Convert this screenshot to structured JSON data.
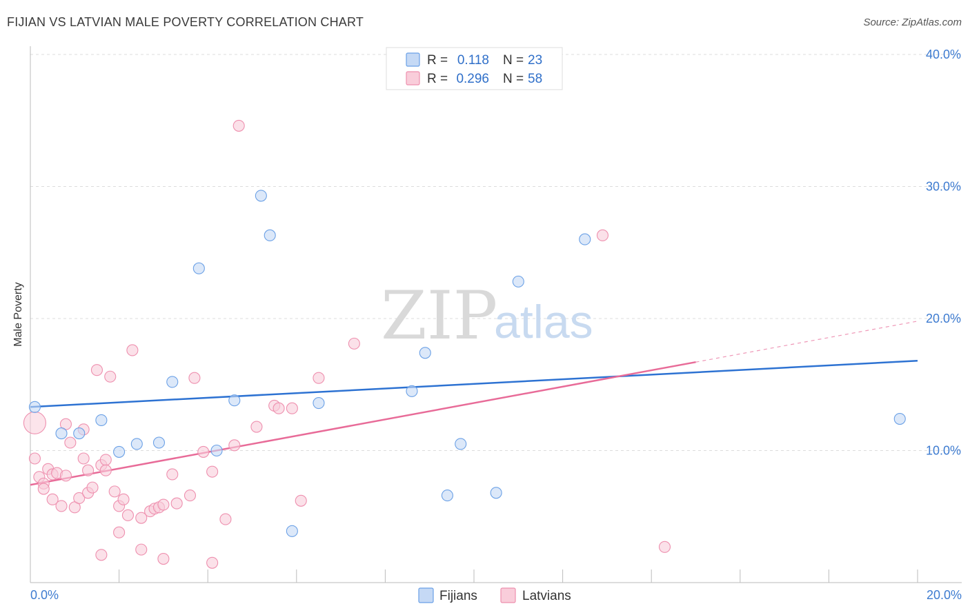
{
  "title": "FIJIAN VS LATVIAN MALE POVERTY CORRELATION CHART",
  "source": "Source: ZipAtlas.com",
  "watermark": {
    "part1": "ZIP",
    "part2": "atlas"
  },
  "chart_data": {
    "type": "scatter",
    "ylabel": "Male Poverty",
    "xlim": [
      0,
      20
    ],
    "ylim": [
      0,
      40
    ],
    "x_tick_labels": {
      "min": "0.0%",
      "max": "20.0%"
    },
    "y_ticks": [
      {
        "value": 10,
        "label": "10.0%"
      },
      {
        "value": 20,
        "label": "20.0%"
      },
      {
        "value": 30,
        "label": "30.0%"
      },
      {
        "value": 40,
        "label": "40.0%"
      }
    ],
    "grid": true,
    "legend_position": "top-center",
    "series": [
      {
        "name": "Fijians",
        "color": "#6aa0e6",
        "fill": "#c5d9f5",
        "line_color": "#2d72d2",
        "R": "0.118",
        "N": "23",
        "trend": {
          "x0": 0.0,
          "y0": 13.3,
          "x1": 20.0,
          "y1": 16.8,
          "dashed_from": null
        },
        "points": [
          [
            0.1,
            13.3
          ],
          [
            0.7,
            11.3
          ],
          [
            1.1,
            11.3
          ],
          [
            1.6,
            12.3
          ],
          [
            2.0,
            9.9
          ],
          [
            2.4,
            10.5
          ],
          [
            2.9,
            10.6
          ],
          [
            3.2,
            15.2
          ],
          [
            3.8,
            23.8
          ],
          [
            4.2,
            10.0
          ],
          [
            4.6,
            13.8
          ],
          [
            5.2,
            29.3
          ],
          [
            5.4,
            26.3
          ],
          [
            5.9,
            3.9
          ],
          [
            6.5,
            13.6
          ],
          [
            8.6,
            14.5
          ],
          [
            8.9,
            17.4
          ],
          [
            9.4,
            6.6
          ],
          [
            9.7,
            10.5
          ],
          [
            10.5,
            6.8
          ],
          [
            11.0,
            22.8
          ],
          [
            12.5,
            26.0
          ],
          [
            19.6,
            12.4
          ]
        ]
      },
      {
        "name": "Latvians",
        "color": "#ee8fae",
        "fill": "#f9cdda",
        "line_color": "#e86b98",
        "R": "0.296",
        "N": "58",
        "trend": {
          "x0": 0.0,
          "y0": 7.4,
          "x1": 20.0,
          "y1": 19.8,
          "dashed_from": 15.0
        },
        "points": [
          [
            0.1,
            12.1
          ],
          [
            0.1,
            9.4
          ],
          [
            0.2,
            8.0
          ],
          [
            0.3,
            7.5
          ],
          [
            0.3,
            7.1
          ],
          [
            0.4,
            8.6
          ],
          [
            0.5,
            8.2
          ],
          [
            0.5,
            6.3
          ],
          [
            0.6,
            8.3
          ],
          [
            0.7,
            5.8
          ],
          [
            0.8,
            8.1
          ],
          [
            0.8,
            12.0
          ],
          [
            0.9,
            10.6
          ],
          [
            1.0,
            5.7
          ],
          [
            1.1,
            6.4
          ],
          [
            1.2,
            11.6
          ],
          [
            1.2,
            9.4
          ],
          [
            1.3,
            6.8
          ],
          [
            1.3,
            8.5
          ],
          [
            1.4,
            7.2
          ],
          [
            1.5,
            16.1
          ],
          [
            1.6,
            8.9
          ],
          [
            1.6,
            2.1
          ],
          [
            1.7,
            9.3
          ],
          [
            1.7,
            8.5
          ],
          [
            1.8,
            15.6
          ],
          [
            1.9,
            6.9
          ],
          [
            2.0,
            5.8
          ],
          [
            2.1,
            6.3
          ],
          [
            2.0,
            3.8
          ],
          [
            2.2,
            5.1
          ],
          [
            2.3,
            17.6
          ],
          [
            2.5,
            4.9
          ],
          [
            2.5,
            2.5
          ],
          [
            2.7,
            5.4
          ],
          [
            2.8,
            5.6
          ],
          [
            2.9,
            5.7
          ],
          [
            3.0,
            5.9
          ],
          [
            3.0,
            1.8
          ],
          [
            3.2,
            8.2
          ],
          [
            3.3,
            6.0
          ],
          [
            3.6,
            6.6
          ],
          [
            3.7,
            15.5
          ],
          [
            3.9,
            9.9
          ],
          [
            4.1,
            8.4
          ],
          [
            4.1,
            1.5
          ],
          [
            4.4,
            4.8
          ],
          [
            4.6,
            10.4
          ],
          [
            4.7,
            34.6
          ],
          [
            5.1,
            11.8
          ],
          [
            5.5,
            13.4
          ],
          [
            5.6,
            13.2
          ],
          [
            5.9,
            13.2
          ],
          [
            6.1,
            6.2
          ],
          [
            6.5,
            15.5
          ],
          [
            7.3,
            18.1
          ],
          [
            12.9,
            26.3
          ],
          [
            14.3,
            2.7
          ]
        ]
      }
    ]
  }
}
